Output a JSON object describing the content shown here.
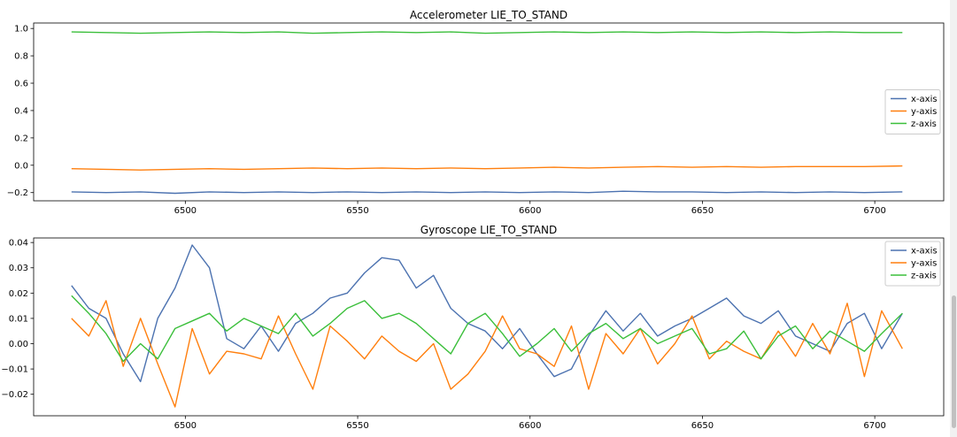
{
  "chart_data": [
    {
      "type": "line",
      "title": "Accelerometer LIE_TO_STAND",
      "xlabel": "",
      "ylabel": "",
      "xlim": [
        6456,
        6720
      ],
      "ylim": [
        -0.26,
        1.04
      ],
      "xticks": [
        6500,
        6550,
        6600,
        6650,
        6700
      ],
      "xtick_labels": [
        "6500",
        "6550",
        "6600",
        "6650",
        "6700"
      ],
      "yticks": [
        -0.2,
        0.0,
        0.2,
        0.4,
        0.6,
        0.8,
        1.0
      ],
      "ytick_labels": [
        "−0.2",
        "0.0",
        "0.2",
        "0.4",
        "0.6",
        "0.8",
        "1.0"
      ],
      "grid": false,
      "legend_placement": "center-right",
      "x": [
        6467,
        6477,
        6487,
        6497,
        6507,
        6517,
        6527,
        6537,
        6547,
        6557,
        6567,
        6577,
        6587,
        6597,
        6607,
        6617,
        6627,
        6637,
        6647,
        6657,
        6667,
        6677,
        6687,
        6697,
        6708
      ],
      "series": [
        {
          "name": "x-axis",
          "color": "#4c72b0",
          "values": [
            -0.195,
            -0.2,
            -0.195,
            -0.205,
            -0.195,
            -0.2,
            -0.195,
            -0.2,
            -0.195,
            -0.2,
            -0.195,
            -0.2,
            -0.195,
            -0.2,
            -0.195,
            -0.2,
            -0.19,
            -0.195,
            -0.195,
            -0.2,
            -0.195,
            -0.2,
            -0.195,
            -0.2,
            -0.195
          ]
        },
        {
          "name": "y-axis",
          "color": "#ff7f0e",
          "values": [
            -0.025,
            -0.03,
            -0.035,
            -0.03,
            -0.025,
            -0.03,
            -0.025,
            -0.02,
            -0.025,
            -0.02,
            -0.025,
            -0.02,
            -0.025,
            -0.02,
            -0.015,
            -0.02,
            -0.015,
            -0.01,
            -0.015,
            -0.01,
            -0.015,
            -0.01,
            -0.01,
            -0.01,
            -0.005
          ]
        },
        {
          "name": "z-axis",
          "color": "#3bbf3b",
          "values": [
            0.975,
            0.97,
            0.965,
            0.97,
            0.975,
            0.97,
            0.975,
            0.965,
            0.97,
            0.975,
            0.97,
            0.975,
            0.965,
            0.97,
            0.975,
            0.97,
            0.975,
            0.97,
            0.975,
            0.97,
            0.975,
            0.97,
            0.975,
            0.97,
            0.97
          ]
        }
      ]
    },
    {
      "type": "line",
      "title": "Gyroscope LIE_TO_STAND",
      "xlabel": "",
      "ylabel": "",
      "xlim": [
        6456,
        6720
      ],
      "ylim": [
        -0.0285,
        0.0418
      ],
      "xticks": [
        6500,
        6550,
        6600,
        6650,
        6700
      ],
      "xtick_labels": [
        "6500",
        "6550",
        "6600",
        "6650",
        "6700"
      ],
      "yticks": [
        -0.02,
        -0.01,
        0.0,
        0.01,
        0.02,
        0.03,
        0.04
      ],
      "ytick_labels": [
        "−0.02",
        "−0.01",
        "0.00",
        "0.01",
        "0.02",
        "0.03",
        "0.04"
      ],
      "grid": false,
      "legend_placement": "top-right",
      "x": [
        6467,
        6472,
        6477,
        6482,
        6487,
        6492,
        6497,
        6502,
        6507,
        6512,
        6517,
        6522,
        6527,
        6532,
        6537,
        6542,
        6547,
        6552,
        6557,
        6562,
        6567,
        6572,
        6577,
        6582,
        6587,
        6592,
        6597,
        6602,
        6607,
        6612,
        6617,
        6622,
        6627,
        6632,
        6637,
        6642,
        6647,
        6652,
        6657,
        6662,
        6667,
        6672,
        6677,
        6682,
        6687,
        6692,
        6697,
        6702,
        6708
      ],
      "series": [
        {
          "name": "x-axis",
          "color": "#4c72b0",
          "values": [
            0.023,
            0.014,
            0.01,
            -0.004,
            -0.015,
            0.01,
            0.022,
            0.039,
            0.03,
            0.002,
            -0.002,
            0.007,
            -0.003,
            0.008,
            0.012,
            0.018,
            0.02,
            0.028,
            0.034,
            0.033,
            0.022,
            0.027,
            0.014,
            0.008,
            0.005,
            -0.002,
            0.006,
            -0.004,
            -0.013,
            -0.01,
            0.003,
            0.013,
            0.005,
            0.012,
            0.003,
            0.007,
            0.01,
            0.014,
            0.018,
            0.011,
            0.008,
            0.013,
            0.003,
            0.0,
            -0.003,
            0.008,
            0.012,
            -0.002,
            0.012
          ]
        },
        {
          "name": "y-axis",
          "color": "#ff7f0e",
          "values": [
            0.01,
            0.003,
            0.017,
            -0.009,
            0.01,
            -0.008,
            -0.025,
            0.006,
            -0.012,
            -0.003,
            -0.004,
            -0.006,
            0.011,
            -0.004,
            -0.018,
            0.007,
            0.001,
            -0.006,
            0.003,
            -0.003,
            -0.007,
            0.0,
            -0.018,
            -0.012,
            -0.003,
            0.011,
            -0.002,
            -0.004,
            -0.009,
            0.007,
            -0.018,
            0.004,
            -0.004,
            0.006,
            -0.008,
            0.0,
            0.011,
            -0.006,
            0.001,
            -0.003,
            -0.006,
            0.005,
            -0.005,
            0.008,
            -0.004,
            0.016,
            -0.013,
            0.013,
            -0.002
          ]
        },
        {
          "name": "z-axis",
          "color": "#3bbf3b",
          "values": [
            0.019,
            0.012,
            0.004,
            -0.007,
            0.0,
            -0.006,
            0.006,
            0.009,
            0.012,
            0.005,
            0.01,
            0.007,
            0.004,
            0.012,
            0.003,
            0.008,
            0.014,
            0.017,
            0.01,
            0.012,
            0.008,
            0.002,
            -0.004,
            0.008,
            0.012,
            0.004,
            -0.005,
            0.0,
            0.006,
            -0.003,
            0.004,
            0.008,
            0.002,
            0.006,
            0.0,
            0.003,
            0.006,
            -0.004,
            -0.002,
            0.005,
            -0.006,
            0.003,
            0.007,
            -0.002,
            0.005,
            0.001,
            -0.003,
            0.004,
            0.012
          ]
        }
      ]
    }
  ]
}
